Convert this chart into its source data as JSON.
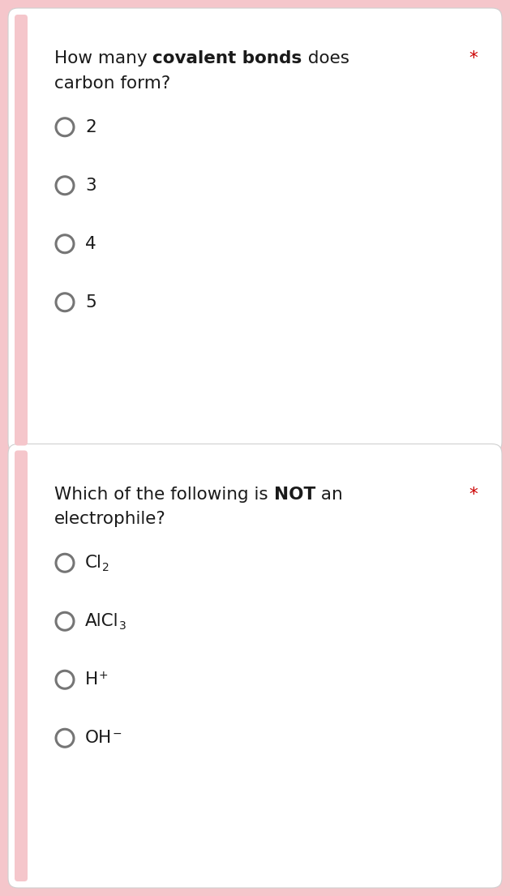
{
  "bg_color": "#f5c6cb",
  "card_color": "#ffffff",
  "text_color": "#1a1a1a",
  "radio_color": "#757575",
  "asterisk_color": "#cc0000",
  "card1": {
    "q_prefix": "How many ",
    "q_bold": "covalent bonds",
    "q_suffix": " does",
    "q_line2": "carbon form?",
    "options": [
      "2",
      "3",
      "4",
      "5"
    ]
  },
  "card2": {
    "q_prefix": "Which of the following is ",
    "q_bold": "NOT",
    "q_suffix": " an",
    "q_line2": "electrophile?",
    "options": [
      {
        "main": "Cl",
        "script": "2",
        "type": "sub"
      },
      {
        "main": "AlCl",
        "script": "3",
        "type": "sub"
      },
      {
        "main": "H",
        "script": "+",
        "type": "sup"
      },
      {
        "main": "OH",
        "script": "−",
        "type": "sup"
      }
    ]
  },
  "font_size_q": 15.5,
  "font_size_opt": 15.5,
  "font_size_script": 10.0,
  "radio_diameter_pts": 22,
  "radio_lw": 2.2,
  "strip_color": "#f5c6cb"
}
